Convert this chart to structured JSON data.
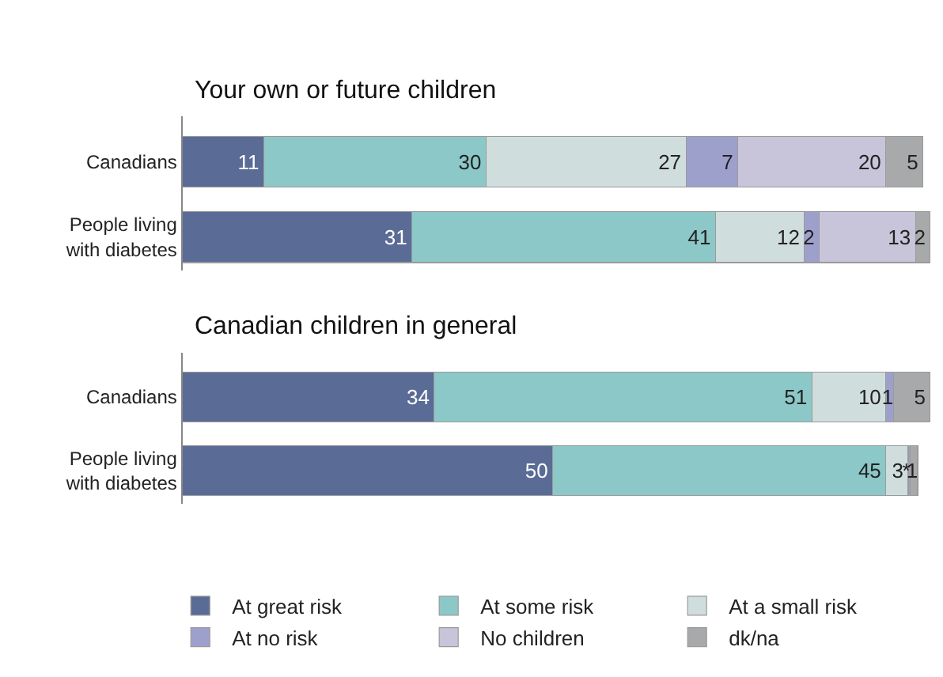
{
  "chart_data": [
    {
      "type": "bar",
      "orientation": "horizontal",
      "stacked": true,
      "title": "Your own or future children",
      "categories": [
        "Canadians",
        "People living with diabetes"
      ],
      "legend": "bottom",
      "series": [
        {
          "name": "At great risk",
          "color": "#5a6b96",
          "values": [
            11,
            31
          ],
          "value_labels": [
            "11",
            "31"
          ]
        },
        {
          "name": "At some risk",
          "color": "#8cc8c8",
          "values": [
            30,
            41
          ],
          "value_labels": [
            "30",
            "41"
          ]
        },
        {
          "name": "At a small risk",
          "color": "#cfdedd",
          "values": [
            27,
            12
          ],
          "value_labels": [
            "27",
            "12"
          ]
        },
        {
          "name": "At no risk",
          "color": "#9ea0cc",
          "values": [
            7,
            2
          ],
          "value_labels": [
            "7",
            "2"
          ]
        },
        {
          "name": "No children",
          "color": "#c8c4da",
          "values": [
            20,
            13
          ],
          "value_labels": [
            "20",
            "13"
          ]
        },
        {
          "name": "dk/na",
          "color": "#a8a9ab",
          "values": [
            5,
            2
          ],
          "value_labels": [
            "5",
            "2"
          ]
        }
      ]
    },
    {
      "type": "bar",
      "orientation": "horizontal",
      "stacked": true,
      "title": "Canadian children in general",
      "categories": [
        "Canadians",
        "People living with diabetes"
      ],
      "legend": "bottom",
      "series": [
        {
          "name": "At great risk",
          "color": "#5a6b96",
          "values": [
            34,
            50
          ],
          "value_labels": [
            "34",
            "50"
          ]
        },
        {
          "name": "At some risk",
          "color": "#8cc8c8",
          "values": [
            51,
            45
          ],
          "value_labels": [
            "51",
            "45"
          ]
        },
        {
          "name": "At a small risk",
          "color": "#cfdedd",
          "values": [
            10,
            3
          ],
          "value_labels": [
            "10",
            "3"
          ]
        },
        {
          "name": "At no risk",
          "color": "#9ea0cc",
          "values": [
            1,
            0.3
          ],
          "value_labels": [
            "1",
            "*"
          ]
        },
        {
          "name": "No children",
          "color": "#c8c4da",
          "values": [
            null,
            null
          ],
          "value_labels": [
            null,
            null
          ]
        },
        {
          "name": "dk/na",
          "color": "#a8a9ab",
          "values": [
            5,
            1
          ],
          "value_labels": [
            "5",
            "1"
          ]
        }
      ]
    }
  ]
}
